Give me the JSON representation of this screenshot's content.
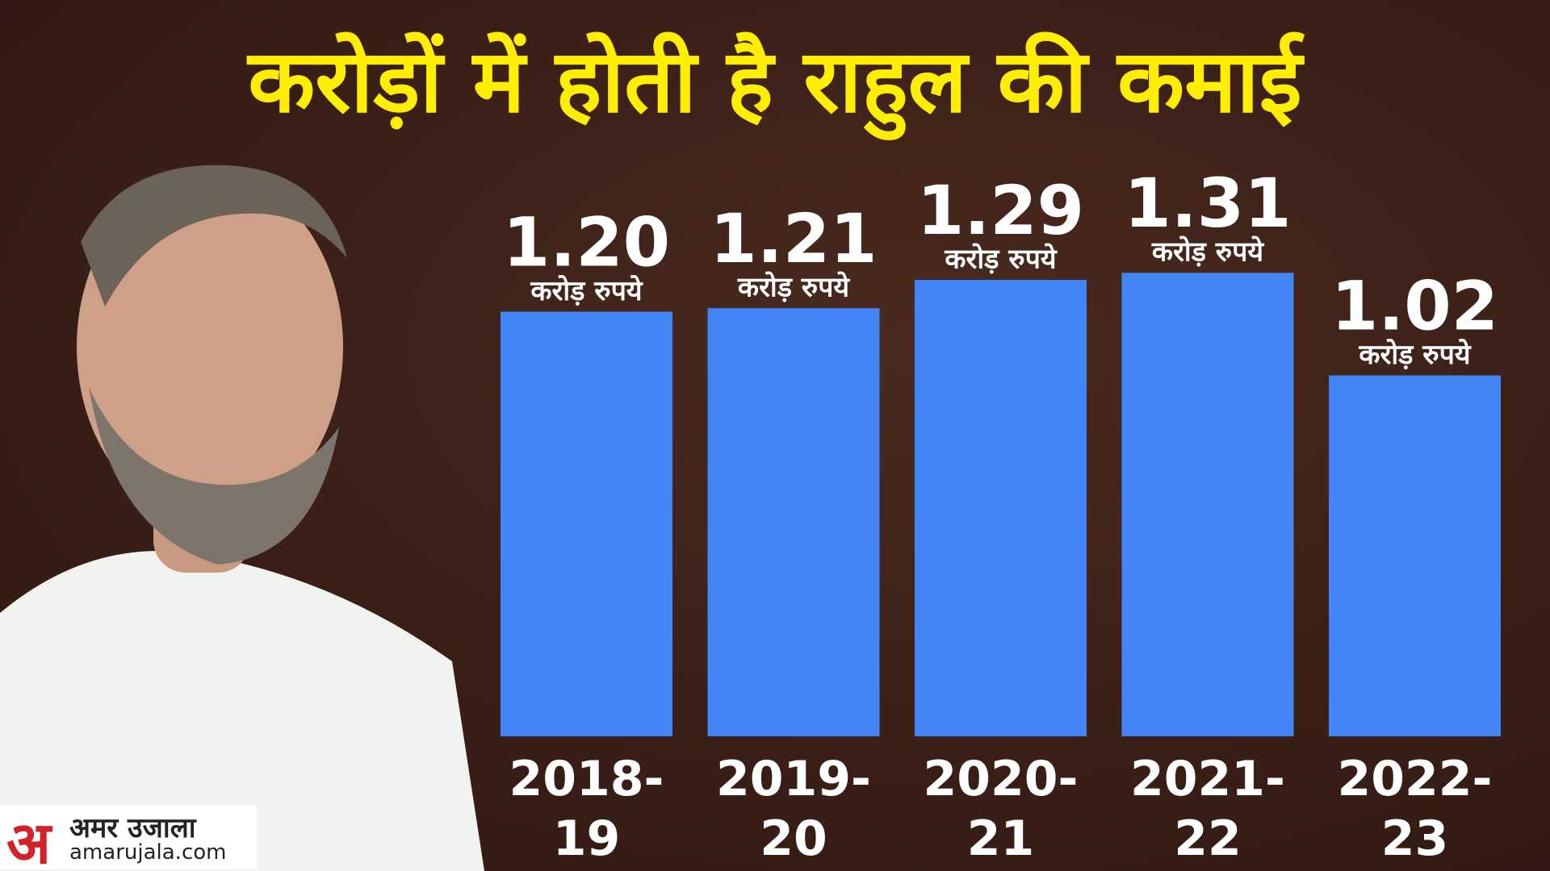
{
  "chart_data": {
    "type": "bar",
    "title": "करोड़ों में होती है राहुल की कमाई",
    "categories": [
      "2018-19",
      "2019-20",
      "2020-21",
      "2021-22",
      "2022-23"
    ],
    "values": [
      1.2,
      1.21,
      1.29,
      1.31,
      1.02
    ],
    "value_labels": [
      "1.20",
      "1.21",
      "1.29",
      "1.31",
      "1.02"
    ],
    "unit_label": "करोड़ रुपये",
    "color": "#4285f4",
    "ylim": [
      0,
      1.6
    ]
  },
  "branding": {
    "logo_letter": "अ",
    "name": "अमर उजाला",
    "site": "amarujala.com"
  }
}
